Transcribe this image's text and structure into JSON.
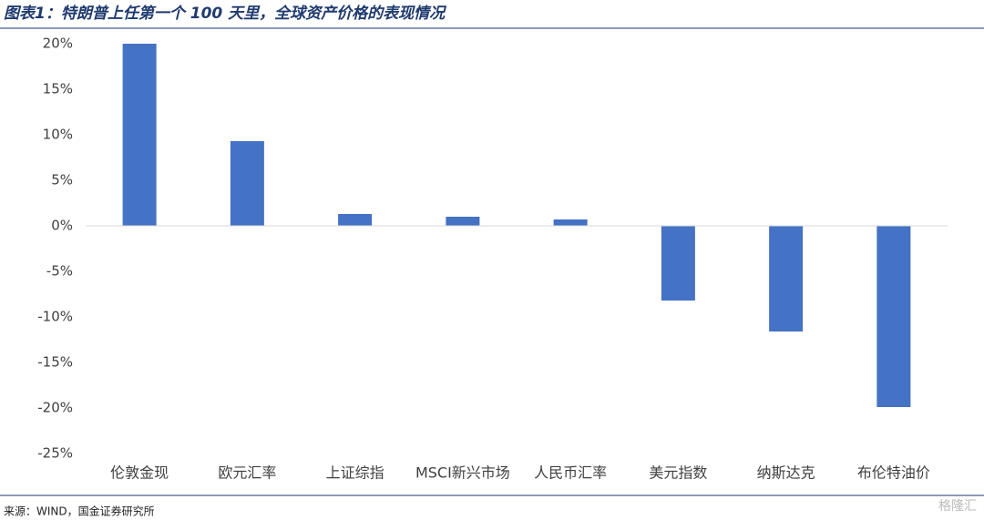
{
  "chart_data": {
    "type": "bar",
    "title": "图表1：特朗普上任第一个 100 天里，全球资产价格的表现情况",
    "source": "来源：WIND，国金证券研究所",
    "watermark": "格隆汇",
    "categories": [
      "伦敦金现",
      "欧元汇率",
      "上证综指",
      "MSCI新兴市场",
      "人民币汇率",
      "美元指数",
      "纳斯达克",
      "布伦特油价"
    ],
    "values": [
      20,
      9.3,
      1.3,
      1.0,
      0.7,
      -8.2,
      -11.6,
      -19.9
    ],
    "color": "#4472c4",
    "ylim": [
      -25,
      20
    ],
    "yticks": [
      {
        "value": 20,
        "label": "20%"
      },
      {
        "value": 15,
        "label": "15%"
      },
      {
        "value": 10,
        "label": "10%"
      },
      {
        "value": 5,
        "label": "5%"
      },
      {
        "value": 0,
        "label": "0%"
      },
      {
        "value": -5,
        "label": "-5%"
      },
      {
        "value": -10,
        "label": "-10%"
      },
      {
        "value": -15,
        "label": "-15%"
      },
      {
        "value": -20,
        "label": "-20%"
      },
      {
        "value": -25,
        "label": "-25%"
      }
    ],
    "grid": false
  }
}
